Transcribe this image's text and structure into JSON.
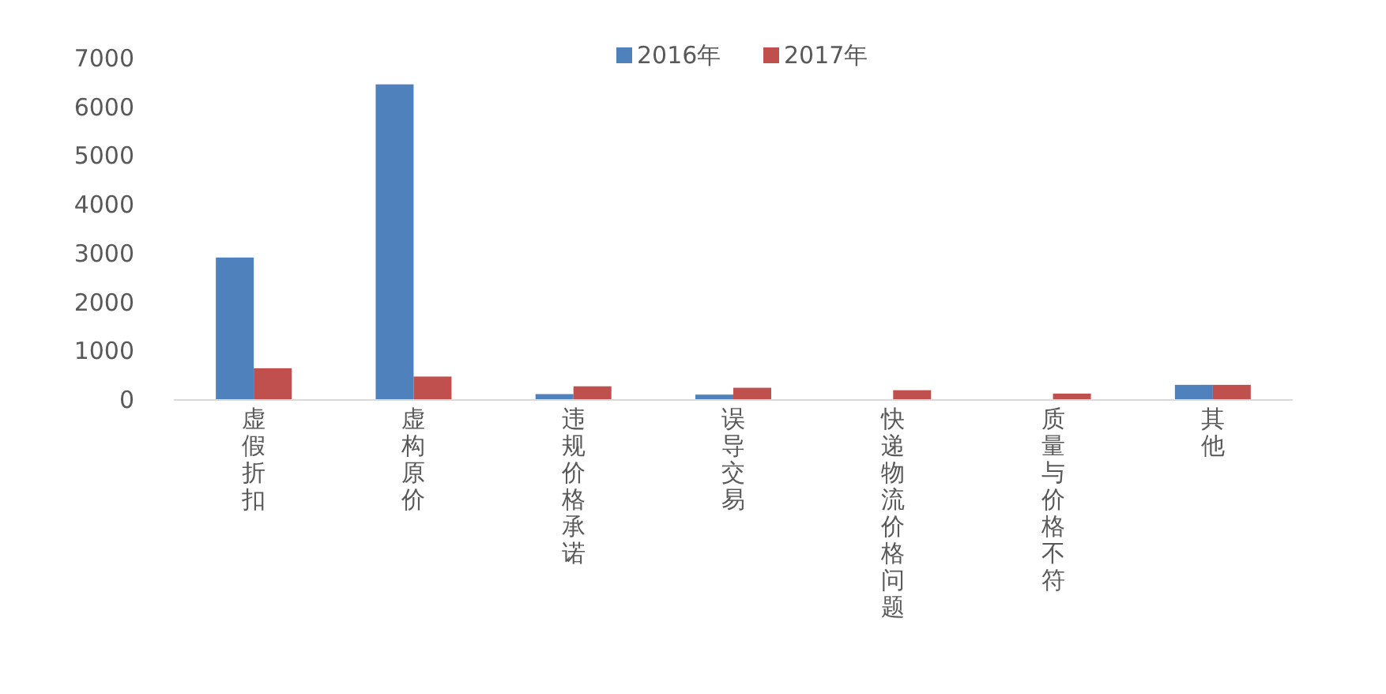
{
  "chart_data": {
    "type": "bar",
    "categories": [
      "虚假折扣",
      "虚构原价",
      "违规价格承诺",
      "误导交易",
      "快递物流价格问题",
      "质量与价格不符",
      "其他"
    ],
    "series": [
      {
        "name": "2016年",
        "color": "#4f81bd",
        "values": [
          2920,
          6470,
          120,
          110,
          0,
          0,
          310
        ]
      },
      {
        "name": "2017年",
        "color": "#c0504d",
        "values": [
          650,
          480,
          280,
          250,
          200,
          130,
          310
        ]
      }
    ],
    "ylim": [
      0,
      7000
    ],
    "yticks": [
      0,
      1000,
      2000,
      3000,
      4000,
      5000,
      6000,
      7000
    ],
    "grid": false,
    "legend": "top"
  }
}
